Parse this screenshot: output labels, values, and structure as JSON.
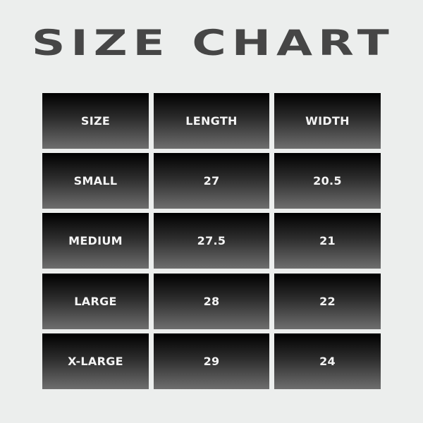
{
  "title": "SIZE CHART",
  "colors": {
    "background": "#eceeed",
    "title": "#464646",
    "cell_top": "#000000",
    "cell_bottom": "#6e6e6e",
    "cell_text": "#f4f4f4"
  },
  "chart_data": {
    "type": "table",
    "title": "SIZE CHART",
    "columns": [
      "SIZE",
      "LENGTH",
      "WIDTH"
    ],
    "rows": [
      [
        "SMALL",
        "27",
        "20.5"
      ],
      [
        "MEDIUM",
        "27.5",
        "21"
      ],
      [
        "LARGE",
        "28",
        "22"
      ],
      [
        "X-LARGE",
        "29",
        "24"
      ]
    ]
  }
}
